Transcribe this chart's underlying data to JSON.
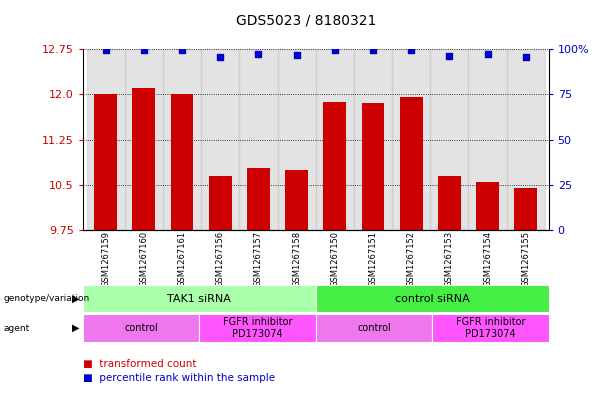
{
  "title": "GDS5023 / 8180321",
  "samples": [
    "GSM1267159",
    "GSM1267160",
    "GSM1267161",
    "GSM1267156",
    "GSM1267157",
    "GSM1267158",
    "GSM1267150",
    "GSM1267151",
    "GSM1267152",
    "GSM1267153",
    "GSM1267154",
    "GSM1267155"
  ],
  "bar_values": [
    12.0,
    12.1,
    12.0,
    10.65,
    10.78,
    10.75,
    11.87,
    11.85,
    11.95,
    10.65,
    10.55,
    10.45
  ],
  "percentile_values": [
    12.73,
    12.73,
    12.73,
    12.62,
    12.67,
    12.65,
    12.73,
    12.73,
    12.73,
    12.63,
    12.67,
    12.62
  ],
  "ylim": [
    9.75,
    12.75
  ],
  "yticks_left": [
    9.75,
    10.5,
    11.25,
    12.0,
    12.75
  ],
  "yticks_right_vals": [
    0,
    25,
    50,
    75,
    100
  ],
  "bar_color": "#cc0000",
  "percentile_color": "#0000cc",
  "genotype_groups": [
    {
      "label": "TAK1 siRNA",
      "start": 0,
      "end": 6,
      "color": "#aaffaa"
    },
    {
      "label": "control siRNA",
      "start": 6,
      "end": 12,
      "color": "#44ee44"
    }
  ],
  "agent_groups": [
    {
      "label": "control",
      "start": 0,
      "end": 3,
      "color": "#ee77ee"
    },
    {
      "label": "FGFR inhibitor\nPD173074",
      "start": 3,
      "end": 6,
      "color": "#ff55ff"
    },
    {
      "label": "control",
      "start": 6,
      "end": 9,
      "color": "#ee77ee"
    },
    {
      "label": "FGFR inhibitor\nPD173074",
      "start": 9,
      "end": 12,
      "color": "#ff55ff"
    }
  ]
}
